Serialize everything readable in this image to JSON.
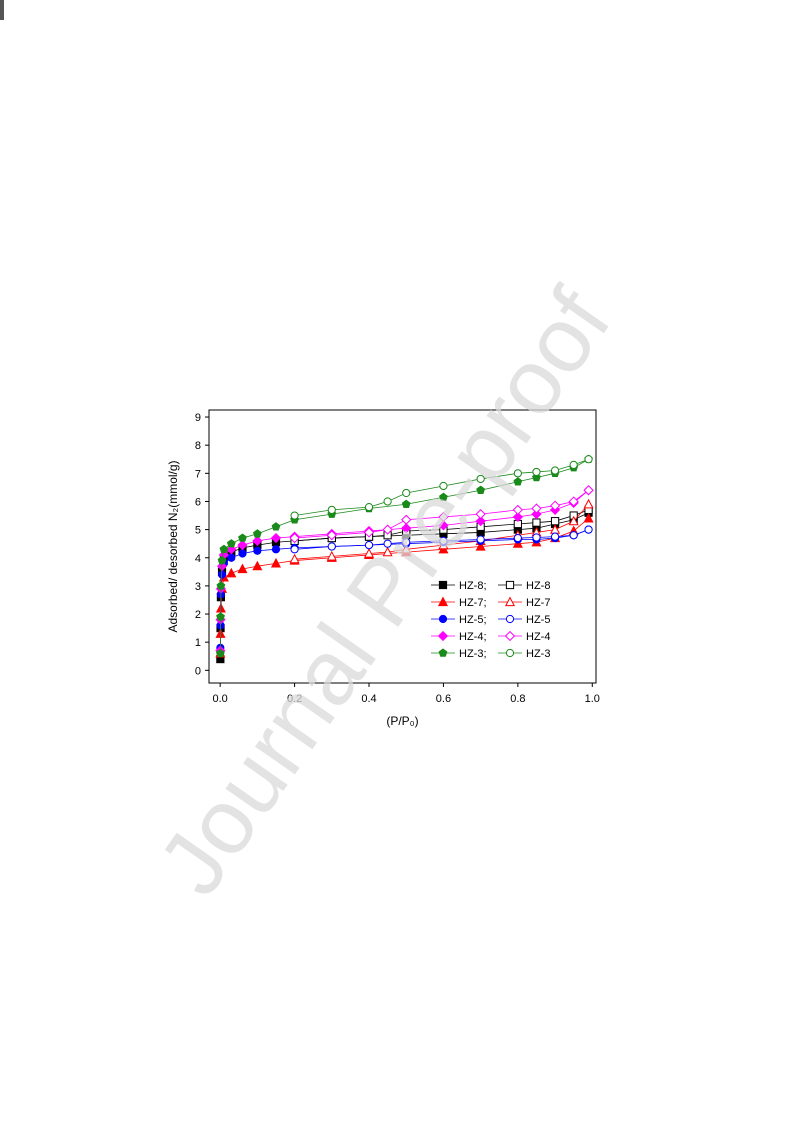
{
  "watermark": "Journal Pre-proof",
  "chart_data": {
    "type": "scatter",
    "xlabel": "(P/P₀)",
    "ylabel": "Adsorbed/ desorbed N₂(mmol/g)",
    "xlim": [
      -0.03,
      1.01
    ],
    "ylim": [
      -0.45,
      9.25
    ],
    "xticks": [
      {
        "value": 0,
        "label": "0.0"
      },
      0.2,
      0.4,
      0.6,
      0.8,
      {
        "value": 1,
        "label": "1.0"
      }
    ],
    "yticks": [
      0,
      1,
      2,
      3,
      4,
      5,
      6,
      7,
      8,
      9
    ],
    "series": [
      {
        "name": "HZ-8;",
        "color": "#000000",
        "marker": "square",
        "filled": true,
        "x": [
          0.0005,
          0.001,
          0.002,
          0.005,
          0.01,
          0.03,
          0.06,
          0.1,
          0.15,
          0.2,
          0.3,
          0.4,
          0.5,
          0.6,
          0.7,
          0.8,
          0.85,
          0.9,
          0.95,
          0.99
        ],
        "values": [
          0.4,
          1.5,
          2.6,
          3.5,
          4.0,
          4.2,
          4.35,
          4.45,
          4.55,
          4.6,
          4.7,
          4.75,
          4.8,
          4.85,
          4.9,
          5.0,
          5.05,
          5.2,
          5.35,
          5.6
        ]
      },
      {
        "name": "HZ-8",
        "color": "#000000",
        "marker": "square",
        "filled": false,
        "x": [
          0.99,
          0.95,
          0.9,
          0.85,
          0.8,
          0.7,
          0.6,
          0.5,
          0.45,
          0.4,
          0.3,
          0.2
        ],
        "values": [
          5.7,
          5.5,
          5.3,
          5.25,
          5.2,
          5.1,
          5.0,
          4.95,
          4.8,
          4.75,
          4.7,
          4.6
        ]
      },
      {
        "name": "HZ-7;",
        "color": "#ff0000",
        "marker": "triangle",
        "filled": true,
        "x": [
          0.0005,
          0.001,
          0.002,
          0.005,
          0.01,
          0.03,
          0.06,
          0.1,
          0.15,
          0.2,
          0.3,
          0.4,
          0.5,
          0.6,
          0.7,
          0.8,
          0.85,
          0.9,
          0.95,
          0.99
        ],
        "values": [
          0.6,
          1.3,
          2.2,
          2.9,
          3.3,
          3.45,
          3.6,
          3.7,
          3.8,
          3.9,
          4.0,
          4.1,
          4.2,
          4.3,
          4.4,
          4.5,
          4.55,
          4.7,
          4.95,
          5.4
        ]
      },
      {
        "name": "HZ-7",
        "color": "#ff0000",
        "marker": "triangle",
        "filled": false,
        "x": [
          0.99,
          0.95,
          0.9,
          0.85,
          0.8,
          0.7,
          0.6,
          0.5,
          0.45,
          0.4,
          0.3,
          0.2
        ],
        "values": [
          5.9,
          5.3,
          5.0,
          4.9,
          4.8,
          4.6,
          4.45,
          4.3,
          4.2,
          4.15,
          4.05,
          3.95
        ]
      },
      {
        "name": "HZ-5;",
        "color": "#0000ff",
        "marker": "circle",
        "filled": true,
        "x": [
          0.0005,
          0.001,
          0.002,
          0.005,
          0.01,
          0.03,
          0.06,
          0.1,
          0.15,
          0.2,
          0.3,
          0.4,
          0.5,
          0.6,
          0.7,
          0.8,
          0.85,
          0.9,
          0.95,
          0.99
        ],
        "values": [
          0.8,
          1.6,
          2.7,
          3.4,
          3.8,
          4.0,
          4.15,
          4.25,
          4.3,
          4.35,
          4.4,
          4.45,
          4.5,
          4.55,
          4.6,
          4.65,
          4.65,
          4.7,
          4.8,
          5.0
        ]
      },
      {
        "name": "HZ-5",
        "color": "#0000ff",
        "marker": "circle",
        "filled": false,
        "x": [
          0.99,
          0.95,
          0.9,
          0.85,
          0.8,
          0.7,
          0.6,
          0.5,
          0.45,
          0.4,
          0.3,
          0.2
        ],
        "values": [
          5.0,
          4.8,
          4.75,
          4.72,
          4.7,
          4.65,
          4.6,
          4.55,
          4.5,
          4.45,
          4.4,
          4.3
        ]
      },
      {
        "name": "HZ-4;",
        "color": "#ff00ff",
        "marker": "diamond",
        "filled": true,
        "x": [
          0.0005,
          0.001,
          0.002,
          0.005,
          0.01,
          0.03,
          0.06,
          0.1,
          0.15,
          0.2,
          0.3,
          0.4,
          0.5,
          0.6,
          0.7,
          0.8,
          0.85,
          0.9,
          0.95,
          0.99
        ],
        "values": [
          0.7,
          1.8,
          2.9,
          3.7,
          4.1,
          4.3,
          4.45,
          4.6,
          4.7,
          4.75,
          4.85,
          4.95,
          5.05,
          5.15,
          5.3,
          5.45,
          5.55,
          5.7,
          5.95,
          6.4
        ]
      },
      {
        "name": "HZ-4",
        "color": "#ff00ff",
        "marker": "diamond",
        "filled": false,
        "x": [
          0.99,
          0.95,
          0.9,
          0.85,
          0.8,
          0.7,
          0.6,
          0.5,
          0.45,
          0.4,
          0.3,
          0.2
        ],
        "values": [
          6.4,
          6.0,
          5.85,
          5.75,
          5.7,
          5.55,
          5.45,
          5.35,
          5.0,
          4.9,
          4.8,
          4.7
        ]
      },
      {
        "name": "HZ-3;",
        "color": "#1a8a1a",
        "marker": "pentagon",
        "filled": true,
        "x": [
          0.0005,
          0.001,
          0.002,
          0.005,
          0.01,
          0.03,
          0.06,
          0.1,
          0.15,
          0.2,
          0.3,
          0.4,
          0.5,
          0.6,
          0.7,
          0.8,
          0.85,
          0.9,
          0.95,
          0.99
        ],
        "values": [
          0.6,
          1.9,
          3.0,
          3.9,
          4.3,
          4.5,
          4.7,
          4.85,
          5.1,
          5.35,
          5.55,
          5.75,
          5.9,
          6.15,
          6.4,
          6.7,
          6.85,
          7.0,
          7.2,
          7.5
        ]
      },
      {
        "name": "HZ-3",
        "color": "#1a8a1a",
        "marker": "circle",
        "filled": false,
        "x": [
          0.99,
          0.95,
          0.9,
          0.85,
          0.8,
          0.7,
          0.6,
          0.5,
          0.45,
          0.4,
          0.3,
          0.2
        ],
        "values": [
          7.5,
          7.3,
          7.1,
          7.05,
          7.0,
          6.8,
          6.55,
          6.3,
          6.0,
          5.8,
          5.7,
          5.5
        ]
      }
    ]
  }
}
